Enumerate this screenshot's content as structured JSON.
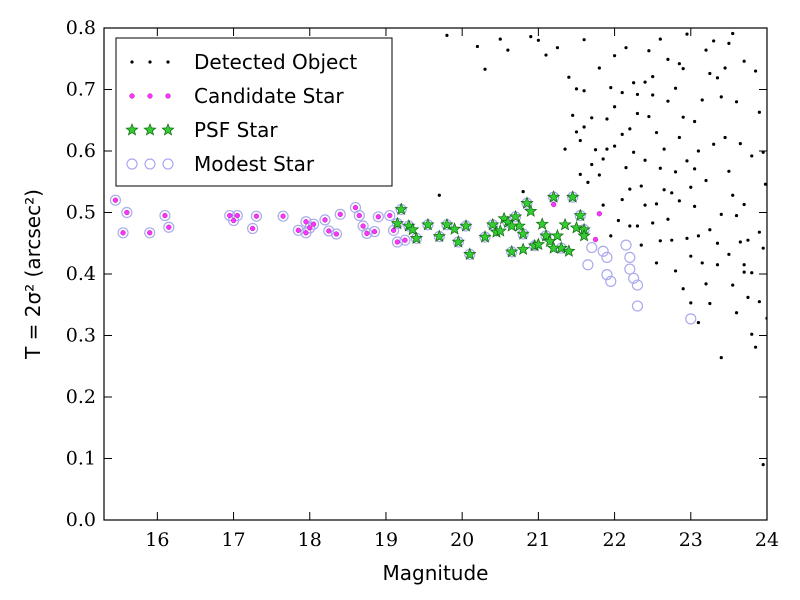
{
  "chart_data": {
    "type": "scatter",
    "title": "",
    "xlabel": "Magnitude",
    "ylabel": "T = 2σ² (arcsec²)",
    "xlim": [
      15.3,
      24.0
    ],
    "ylim": [
      0.0,
      0.8
    ],
    "xticks": [
      "16",
      "17",
      "18",
      "19",
      "20",
      "21",
      "22",
      "23",
      "24"
    ],
    "yticks": [
      "0.0",
      "0.1",
      "0.2",
      "0.3",
      "0.4",
      "0.5",
      "0.6",
      "0.7",
      "0.8"
    ],
    "grid": false,
    "legend_position": "top-left",
    "series": [
      {
        "name": "Detected Object",
        "marker": "dot",
        "color": "#000000",
        "points": [
          [
            19.8,
            0.788
          ],
          [
            20.2,
            0.77
          ],
          [
            20.3,
            0.733
          ],
          [
            20.5,
            0.782
          ],
          [
            20.6,
            0.764
          ],
          [
            20.9,
            0.786
          ],
          [
            21.0,
            0.78
          ],
          [
            21.1,
            0.756
          ],
          [
            21.25,
            0.768
          ],
          [
            21.4,
            0.72
          ],
          [
            21.5,
            0.701
          ],
          [
            21.6,
            0.781
          ],
          [
            21.7,
            0.654
          ],
          [
            21.6,
            0.639
          ],
          [
            21.55,
            0.617
          ],
          [
            21.7,
            0.578
          ],
          [
            21.8,
            0.561
          ],
          [
            21.9,
            0.603
          ],
          [
            22.0,
            0.755
          ],
          [
            22.0,
            0.672
          ],
          [
            22.1,
            0.627
          ],
          [
            22.15,
            0.573
          ],
          [
            22.2,
            0.538
          ],
          [
            22.25,
            0.598
          ],
          [
            22.3,
            0.661
          ],
          [
            22.4,
            0.712
          ],
          [
            22.45,
            0.763
          ],
          [
            22.5,
            0.691
          ],
          [
            22.55,
            0.63
          ],
          [
            22.6,
            0.572
          ],
          [
            22.65,
            0.537
          ],
          [
            22.7,
            0.489
          ],
          [
            22.75,
            0.455
          ],
          [
            22.8,
            0.702
          ],
          [
            22.85,
            0.742
          ],
          [
            22.9,
            0.655
          ],
          [
            22.95,
            0.584
          ],
          [
            23.0,
            0.541
          ],
          [
            23.05,
            0.51
          ],
          [
            23.1,
            0.462
          ],
          [
            23.15,
            0.418
          ],
          [
            23.2,
            0.384
          ],
          [
            23.25,
            0.352
          ],
          [
            23.3,
            0.779
          ],
          [
            23.35,
            0.719
          ],
          [
            23.4,
            0.688
          ],
          [
            23.45,
            0.622
          ],
          [
            23.5,
            0.567
          ],
          [
            23.55,
            0.528
          ],
          [
            23.6,
            0.495
          ],
          [
            23.65,
            0.452
          ],
          [
            23.7,
            0.403
          ],
          [
            23.75,
            0.362
          ],
          [
            23.8,
            0.302
          ],
          [
            23.85,
            0.281
          ],
          [
            23.9,
            0.663
          ],
          [
            23.95,
            0.598
          ],
          [
            23.98,
            0.546
          ],
          [
            23.7,
            0.746
          ],
          [
            23.5,
            0.775
          ],
          [
            23.2,
            0.764
          ],
          [
            22.95,
            0.79
          ],
          [
            22.7,
            0.749
          ],
          [
            22.5,
            0.721
          ],
          [
            22.3,
            0.692
          ],
          [
            22.1,
            0.521
          ],
          [
            22.05,
            0.487
          ],
          [
            21.95,
            0.462
          ],
          [
            22.2,
            0.478
          ],
          [
            22.4,
            0.512
          ],
          [
            22.6,
            0.454
          ],
          [
            22.8,
            0.405
          ],
          [
            23.0,
            0.353
          ],
          [
            23.1,
            0.321
          ],
          [
            23.4,
            0.264
          ],
          [
            23.6,
            0.337
          ],
          [
            23.8,
            0.402
          ],
          [
            23.9,
            0.468
          ],
          [
            23.3,
            0.611
          ],
          [
            23.05,
            0.571
          ],
          [
            22.85,
            0.622
          ],
          [
            22.65,
            0.603
          ],
          [
            22.45,
            0.656
          ],
          [
            22.25,
            0.711
          ],
          [
            21.85,
            0.512
          ],
          [
            21.95,
            0.703
          ],
          [
            21.8,
            0.735
          ],
          [
            21.6,
            0.698
          ],
          [
            21.45,
            0.658
          ],
          [
            21.35,
            0.603
          ],
          [
            20.8,
            0.534
          ],
          [
            19.7,
            0.528
          ],
          [
            23.95,
            0.09
          ],
          [
            24.0,
            0.328
          ],
          [
            23.7,
            0.513
          ],
          [
            23.5,
            0.432
          ],
          [
            23.25,
            0.472
          ],
          [
            22.55,
            0.418
          ],
          [
            22.35,
            0.447
          ],
          [
            22.9,
            0.376
          ],
          [
            23.35,
            0.415
          ],
          [
            23.55,
            0.382
          ],
          [
            23.75,
            0.455
          ],
          [
            23.15,
            0.683
          ],
          [
            22.75,
            0.532
          ],
          [
            22.15,
            0.768
          ],
          [
            21.75,
            0.602
          ],
          [
            21.55,
            0.562
          ],
          [
            23.85,
            0.73
          ],
          [
            23.65,
            0.612
          ],
          [
            23.45,
            0.735
          ],
          [
            23.2,
            0.552
          ],
          [
            22.6,
            0.782
          ],
          [
            22.4,
            0.585
          ],
          [
            22.2,
            0.636
          ],
          [
            22.0,
            0.608
          ],
          [
            21.9,
            0.652
          ],
          [
            23.05,
            0.648
          ],
          [
            22.8,
            0.566
          ],
          [
            22.55,
            0.514
          ],
          [
            23.6,
            0.68
          ],
          [
            23.8,
            0.592
          ],
          [
            23.95,
            0.442
          ],
          [
            23.4,
            0.497
          ],
          [
            23.1,
            0.6
          ],
          [
            22.95,
            0.458
          ],
          [
            22.7,
            0.681
          ],
          [
            22.35,
            0.543
          ],
          [
            22.1,
            0.695
          ],
          [
            21.65,
            0.549
          ],
          [
            21.85,
            0.587
          ],
          [
            21.5,
            0.631
          ],
          [
            23.55,
            0.791
          ],
          [
            23.25,
            0.726
          ],
          [
            22.85,
            0.519
          ],
          [
            23.7,
            0.415
          ],
          [
            23.9,
            0.355
          ],
          [
            22.5,
            0.483
          ],
          [
            22.3,
            0.478
          ],
          [
            23.0,
            0.429
          ],
          [
            22.9,
            0.734
          ],
          [
            23.35,
            0.45
          ]
        ]
      },
      {
        "name": "Candidate Star",
        "marker": "pink-dot",
        "color": "#ff33ff",
        "points": [
          [
            15.45,
            0.52
          ],
          [
            15.55,
            0.467
          ],
          [
            15.6,
            0.5
          ],
          [
            15.9,
            0.467
          ],
          [
            16.1,
            0.495
          ],
          [
            16.15,
            0.476
          ],
          [
            16.95,
            0.495
          ],
          [
            17.0,
            0.487
          ],
          [
            17.05,
            0.495
          ],
          [
            17.25,
            0.474
          ],
          [
            17.3,
            0.494
          ],
          [
            17.65,
            0.494
          ],
          [
            17.85,
            0.471
          ],
          [
            17.95,
            0.467
          ],
          [
            17.95,
            0.485
          ],
          [
            18.0,
            0.475
          ],
          [
            18.05,
            0.481
          ],
          [
            18.2,
            0.488
          ],
          [
            18.25,
            0.47
          ],
          [
            18.35,
            0.465
          ],
          [
            18.4,
            0.497
          ],
          [
            18.6,
            0.508
          ],
          [
            18.65,
            0.495
          ],
          [
            18.7,
            0.478
          ],
          [
            18.75,
            0.466
          ],
          [
            18.85,
            0.469
          ],
          [
            18.9,
            0.493
          ],
          [
            19.05,
            0.495
          ],
          [
            19.1,
            0.471
          ],
          [
            19.15,
            0.452
          ],
          [
            19.25,
            0.455
          ],
          [
            21.2,
            0.513
          ],
          [
            21.8,
            0.498
          ],
          [
            21.75,
            0.456
          ]
        ]
      },
      {
        "name": "PSF Star",
        "marker": "star",
        "color": "#22bb22",
        "points": [
          [
            19.15,
            0.482
          ],
          [
            19.2,
            0.505
          ],
          [
            19.3,
            0.478
          ],
          [
            19.35,
            0.472
          ],
          [
            19.4,
            0.458
          ],
          [
            19.55,
            0.48
          ],
          [
            19.7,
            0.461
          ],
          [
            19.8,
            0.48
          ],
          [
            19.9,
            0.473
          ],
          [
            19.95,
            0.452
          ],
          [
            20.05,
            0.478
          ],
          [
            20.1,
            0.432
          ],
          [
            20.3,
            0.46
          ],
          [
            20.4,
            0.48
          ],
          [
            20.45,
            0.468
          ],
          [
            20.55,
            0.49
          ],
          [
            20.6,
            0.484
          ],
          [
            20.65,
            0.436
          ],
          [
            20.7,
            0.493
          ],
          [
            20.75,
            0.478
          ],
          [
            20.8,
            0.465
          ],
          [
            20.85,
            0.515
          ],
          [
            20.9,
            0.502
          ],
          [
            20.95,
            0.446
          ],
          [
            21.0,
            0.448
          ],
          [
            21.1,
            0.462
          ],
          [
            21.15,
            0.453
          ],
          [
            21.2,
            0.525
          ],
          [
            21.25,
            0.462
          ],
          [
            21.3,
            0.442
          ],
          [
            21.35,
            0.48
          ],
          [
            21.45,
            0.525
          ],
          [
            21.5,
            0.475
          ],
          [
            21.55,
            0.495
          ],
          [
            21.6,
            0.472
          ],
          [
            20.5,
            0.47
          ],
          [
            20.65,
            0.478
          ],
          [
            20.8,
            0.44
          ],
          [
            21.05,
            0.481
          ],
          [
            21.2,
            0.442
          ],
          [
            21.4,
            0.437
          ],
          [
            21.6,
            0.462
          ]
        ]
      },
      {
        "name": "Modest Star",
        "marker": "open-circle",
        "color": "#aaaaee",
        "points": [
          [
            15.45,
            0.52
          ],
          [
            15.55,
            0.467
          ],
          [
            15.6,
            0.5
          ],
          [
            15.9,
            0.467
          ],
          [
            16.1,
            0.495
          ],
          [
            16.15,
            0.476
          ],
          [
            16.95,
            0.495
          ],
          [
            17.0,
            0.487
          ],
          [
            17.05,
            0.495
          ],
          [
            17.25,
            0.474
          ],
          [
            17.3,
            0.494
          ],
          [
            17.65,
            0.494
          ],
          [
            17.85,
            0.471
          ],
          [
            17.95,
            0.467
          ],
          [
            17.95,
            0.485
          ],
          [
            18.0,
            0.475
          ],
          [
            18.05,
            0.481
          ],
          [
            18.2,
            0.488
          ],
          [
            18.25,
            0.47
          ],
          [
            18.35,
            0.465
          ],
          [
            18.4,
            0.497
          ],
          [
            18.6,
            0.508
          ],
          [
            18.65,
            0.495
          ],
          [
            18.7,
            0.478
          ],
          [
            18.75,
            0.466
          ],
          [
            18.85,
            0.469
          ],
          [
            18.9,
            0.493
          ],
          [
            19.05,
            0.495
          ],
          [
            19.1,
            0.471
          ],
          [
            19.15,
            0.452
          ],
          [
            19.25,
            0.455
          ],
          [
            19.15,
            0.482
          ],
          [
            19.2,
            0.505
          ],
          [
            19.3,
            0.478
          ],
          [
            19.4,
            0.458
          ],
          [
            19.55,
            0.48
          ],
          [
            19.7,
            0.461
          ],
          [
            19.8,
            0.48
          ],
          [
            19.95,
            0.452
          ],
          [
            20.05,
            0.478
          ],
          [
            20.1,
            0.432
          ],
          [
            20.3,
            0.46
          ],
          [
            20.4,
            0.48
          ],
          [
            20.6,
            0.484
          ],
          [
            20.65,
            0.436
          ],
          [
            20.7,
            0.493
          ],
          [
            20.8,
            0.465
          ],
          [
            20.85,
            0.515
          ],
          [
            20.95,
            0.446
          ],
          [
            21.1,
            0.462
          ],
          [
            21.2,
            0.525
          ],
          [
            21.3,
            0.442
          ],
          [
            21.45,
            0.525
          ],
          [
            21.55,
            0.495
          ],
          [
            21.6,
            0.472
          ],
          [
            21.7,
            0.443
          ],
          [
            21.65,
            0.415
          ],
          [
            21.85,
            0.437
          ],
          [
            21.9,
            0.427
          ],
          [
            21.9,
            0.399
          ],
          [
            21.95,
            0.388
          ],
          [
            22.15,
            0.447
          ],
          [
            22.2,
            0.427
          ],
          [
            22.2,
            0.408
          ],
          [
            22.25,
            0.393
          ],
          [
            22.3,
            0.382
          ],
          [
            22.3,
            0.348
          ],
          [
            23.0,
            0.327
          ]
        ]
      }
    ]
  }
}
